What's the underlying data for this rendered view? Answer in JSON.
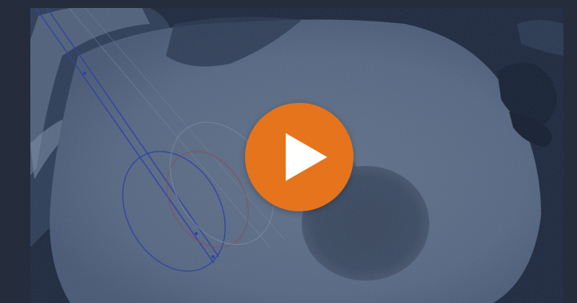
{
  "video": {
    "play_button": {
      "icon": "play-icon",
      "color": "#e5741c",
      "icon_color": "#ffffff"
    },
    "image": {
      "content": "ct-scan-with-needle-overlay",
      "overlay_colors": [
        "#3a4fb4",
        "#8a9ab0",
        "#a0505a"
      ]
    }
  }
}
